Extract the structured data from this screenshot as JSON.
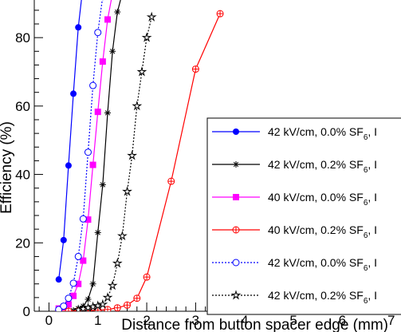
{
  "chart_data": {
    "type": "line",
    "xlabel": "Distance from button spacer edge (mm)",
    "ylabel": "Efficiency (%)",
    "xlim": [
      -0.3,
      7.2
    ],
    "ylim": [
      0,
      91
    ],
    "x_ticks": [
      0,
      1,
      2,
      3,
      4,
      5,
      6,
      7
    ],
    "y_ticks": [
      0,
      20,
      40,
      60,
      80
    ],
    "grid": false,
    "legend_position": "right",
    "legend_visible_text": "42 kV/cm, 0.0% SF, t",
    "series": [
      {
        "name": "42 kV/cm, 0.0% SF6, I",
        "color": "#0000ff",
        "marker": "filled-circle",
        "line": "solid",
        "points": [
          [
            0.2,
            9.3
          ],
          [
            0.3,
            20.8
          ],
          [
            0.4,
            42.6
          ],
          [
            0.5,
            63.6
          ],
          [
            0.6,
            83.0
          ],
          [
            0.7,
            95.5
          ]
        ]
      },
      {
        "name": "42 kV/cm, 0.2% SF6, I",
        "color": "#000000",
        "marker": "asterisk",
        "line": "solid",
        "points": [
          [
            0.5,
            0.2
          ],
          [
            0.6,
            0.8
          ],
          [
            0.7,
            1.5
          ],
          [
            0.8,
            3.5
          ],
          [
            0.9,
            8.0
          ],
          [
            1.0,
            23.0
          ],
          [
            1.1,
            37.0
          ],
          [
            1.2,
            58.0
          ],
          [
            1.3,
            76.0
          ],
          [
            1.4,
            87.5
          ],
          [
            1.5,
            93.0
          ]
        ]
      },
      {
        "name": "40 kV/cm, 0.0% SF6, I",
        "color": "#ff00ff",
        "marker": "filled-square",
        "line": "solid",
        "points": [
          [
            0.2,
            0.8
          ],
          [
            0.3,
            1.2
          ],
          [
            0.4,
            2.0
          ],
          [
            0.5,
            4.5
          ],
          [
            0.6,
            8.0
          ],
          [
            0.7,
            14.8
          ],
          [
            0.8,
            26.8
          ],
          [
            0.9,
            42.8
          ],
          [
            1.0,
            58.3
          ],
          [
            1.1,
            73.0
          ],
          [
            1.2,
            85.3
          ],
          [
            1.3,
            93.0
          ]
        ]
      },
      {
        "name": "40 kV/cm, 0.2% SF6, I",
        "color": "#ff0000",
        "marker": "crossed-circle",
        "line": "solid",
        "points": [
          [
            0.2,
            0.0
          ],
          [
            0.4,
            0.0
          ],
          [
            0.6,
            0.1
          ],
          [
            0.8,
            0.2
          ],
          [
            1.0,
            0.3
          ],
          [
            1.2,
            0.5
          ],
          [
            1.4,
            1.0
          ],
          [
            1.6,
            1.8
          ],
          [
            1.8,
            3.8
          ],
          [
            2.0,
            10.0
          ],
          [
            2.5,
            38.0
          ],
          [
            3.0,
            70.8
          ],
          [
            3.5,
            87.0
          ]
        ]
      },
      {
        "name": "42 kV/cm, 0.0% SF6, I",
        "color": "#0000ff",
        "marker": "open-circle",
        "line": "dotted",
        "points": [
          [
            0.2,
            0.5
          ],
          [
            0.3,
            1.5
          ],
          [
            0.4,
            3.8
          ],
          [
            0.5,
            8.2
          ],
          [
            0.6,
            16.0
          ],
          [
            0.7,
            27.0
          ],
          [
            0.8,
            46.5
          ],
          [
            0.9,
            66.0
          ],
          [
            1.0,
            81.5
          ],
          [
            1.1,
            92.0
          ]
        ]
      },
      {
        "name": "42 kV/cm, 0.2% SF6, I",
        "color": "#000000",
        "marker": "open-star",
        "line": "dotted",
        "points": [
          [
            0.6,
            0.4
          ],
          [
            0.7,
            0.7
          ],
          [
            0.8,
            1.0
          ],
          [
            0.9,
            1.3
          ],
          [
            1.0,
            1.6
          ],
          [
            1.1,
            2.0
          ],
          [
            1.2,
            4.0
          ],
          [
            1.3,
            7.5
          ],
          [
            1.4,
            14.0
          ],
          [
            1.5,
            22.0
          ],
          [
            1.6,
            35.0
          ],
          [
            1.7,
            45.5
          ],
          [
            1.8,
            60.0
          ],
          [
            1.9,
            70.0
          ],
          [
            2.0,
            80.0
          ],
          [
            2.1,
            86.0
          ]
        ]
      }
    ]
  }
}
